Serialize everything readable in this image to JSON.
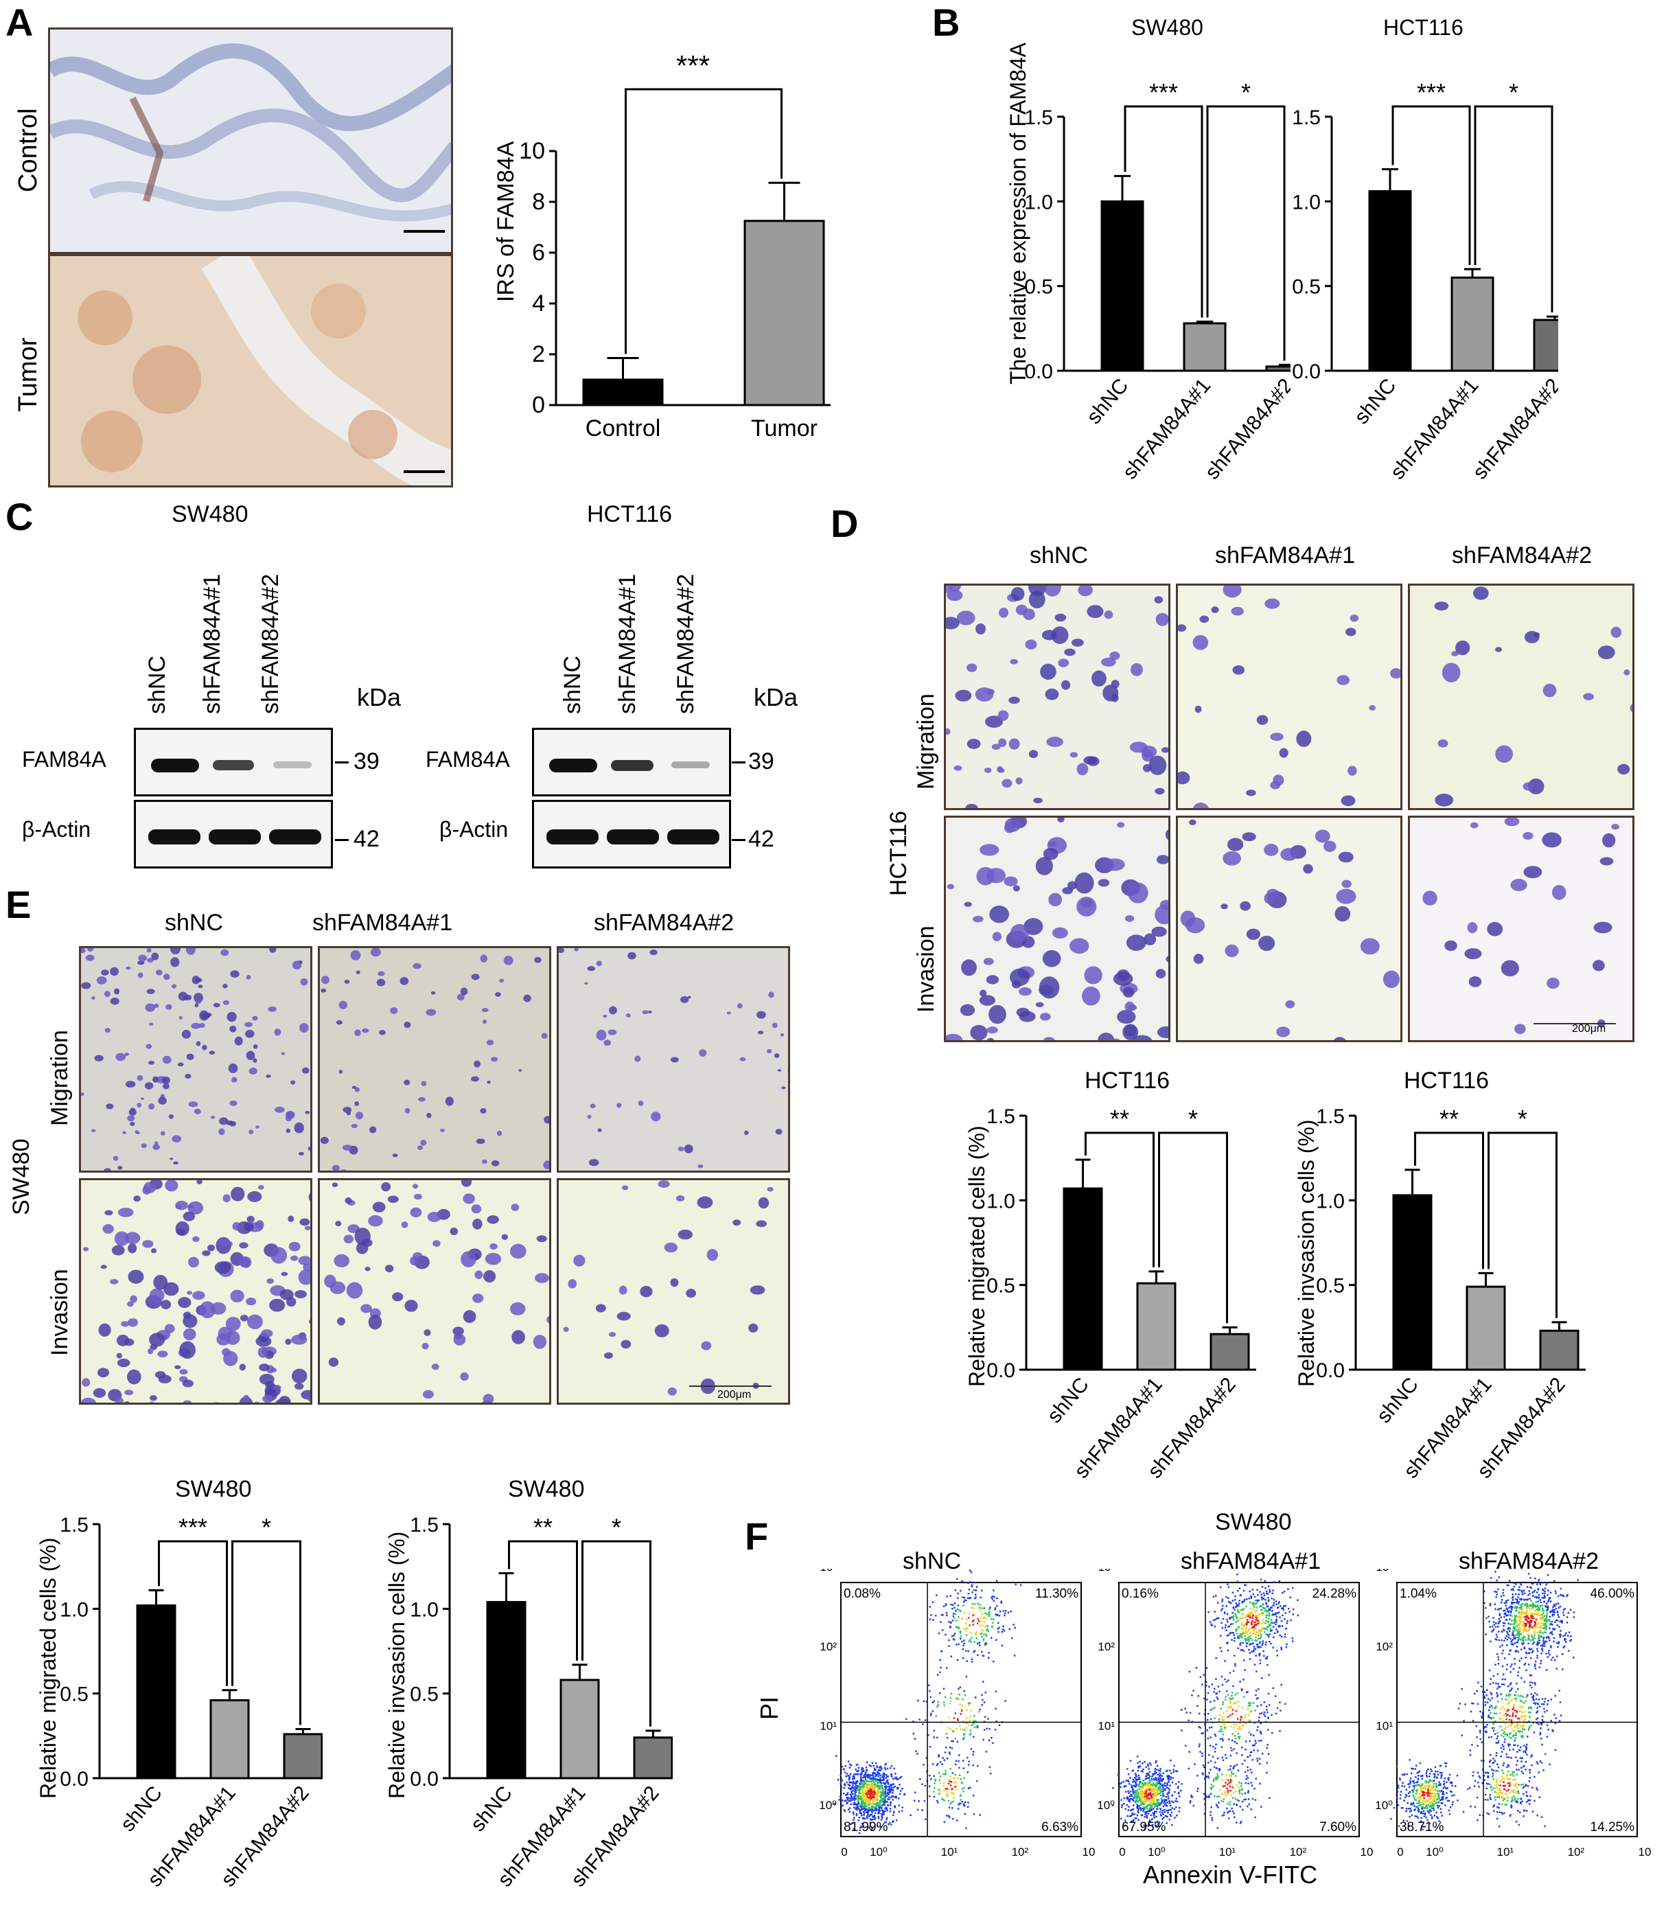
{
  "panel_letters": {
    "a": "A",
    "b": "B",
    "c": "C",
    "d": "D",
    "e": "E",
    "f": "F"
  },
  "panel_a": {
    "row_labels": [
      "Control",
      "Tumor"
    ],
    "chart": {
      "ylabel": "IRS of FAM84A",
      "significance": "***",
      "categories": [
        "Control",
        "Tumor"
      ],
      "values": [
        1.0,
        7.25
      ],
      "errors": [
        0.85,
        1.5
      ],
      "ylim": [
        0,
        10
      ],
      "yticks": [
        "0",
        "2",
        "4",
        "6",
        "8",
        "10"
      ]
    }
  },
  "panel_b": {
    "ylabel": "The relative expression of FAM84A",
    "charts": [
      {
        "title": "SW480",
        "categories": [
          "shNC",
          "shFAM84A#1",
          "shFAM84A#2"
        ],
        "values": [
          1.0,
          0.28,
          0.025
        ],
        "errors": [
          0.15,
          0.01,
          0.01
        ],
        "sig": [
          "***",
          "*"
        ],
        "ylim": [
          0,
          1.5
        ],
        "yticks": [
          "0.0",
          "0.5",
          "1.0",
          "1.5"
        ]
      },
      {
        "title": "HCT116",
        "categories": [
          "shNC",
          "shFAM84A#1",
          "shFAM84A#2"
        ],
        "values": [
          1.06,
          0.55,
          0.3
        ],
        "errors": [
          0.13,
          0.05,
          0.02
        ],
        "sig": [
          "***",
          "*"
        ],
        "ylim": [
          0,
          1.5
        ],
        "yticks": [
          "0.0",
          "0.5",
          "1.0",
          "1.5"
        ]
      }
    ]
  },
  "panel_c": {
    "blots": [
      {
        "title": "SW480",
        "lanes": [
          "shNC",
          "shFAM84A#1",
          "shFAM84A#2"
        ],
        "kda_label": "kDa",
        "rows": [
          {
            "name": "FAM84A",
            "kda": "39"
          },
          {
            "name": "β-Actin",
            "kda": "42"
          }
        ]
      },
      {
        "title": "HCT116",
        "lanes": [
          "shNC",
          "shFAM84A#1",
          "shFAM84A#2"
        ],
        "kda_label": "kDa",
        "rows": [
          {
            "name": "FAM84A",
            "kda": "39"
          },
          {
            "name": "β-Actin",
            "kda": "42"
          }
        ]
      }
    ]
  },
  "panel_d": {
    "cell_line": "HCT116",
    "col_labels": [
      "shNC",
      "shFAM84A#1",
      "shFAM84A#2"
    ],
    "row_labels": [
      "Migration",
      "Invasion"
    ],
    "scale_bar": "200μm",
    "charts": [
      {
        "title": "HCT116",
        "ylabel": "Relative migrated cells (%)",
        "categories": [
          "shNC",
          "shFAM84A#1",
          "shFAM84A#2"
        ],
        "values": [
          1.07,
          0.51,
          0.21
        ],
        "errors": [
          0.17,
          0.07,
          0.04
        ],
        "sig": [
          "**",
          "*"
        ],
        "ylim": [
          0,
          1.5
        ],
        "yticks": [
          "0.0",
          "0.5",
          "1.0",
          "1.5"
        ]
      },
      {
        "title": "HCT116",
        "ylabel": "Relative invsasion cells (%)",
        "categories": [
          "shNC",
          "shFAM84A#1",
          "shFAM84A#2"
        ],
        "values": [
          1.03,
          0.49,
          0.23
        ],
        "errors": [
          0.15,
          0.08,
          0.05
        ],
        "sig": [
          "**",
          "*"
        ],
        "ylim": [
          0,
          1.5
        ],
        "yticks": [
          "0.0",
          "0.5",
          "1.0",
          "1.5"
        ]
      }
    ]
  },
  "panel_e": {
    "cell_line": "SW480",
    "col_labels": [
      "shNC",
      "shFAM84A#1",
      "shFAM84A#2"
    ],
    "row_labels": [
      "Migration",
      "Invasion"
    ],
    "scale_bar": "200μm",
    "charts": [
      {
        "title": "SW480",
        "ylabel": "Relative migrated cells (%)",
        "categories": [
          "shNC",
          "shFAM84A#1",
          "shFAM84A#2"
        ],
        "values": [
          1.02,
          0.46,
          0.26
        ],
        "errors": [
          0.09,
          0.06,
          0.03
        ],
        "sig": [
          "***",
          "*"
        ],
        "ylim": [
          0,
          1.5
        ],
        "yticks": [
          "0.0",
          "0.5",
          "1.0",
          "1.5"
        ]
      },
      {
        "title": "SW480",
        "ylabel": "Relative invsasion cells (%)",
        "categories": [
          "shNC",
          "shFAM84A#1",
          "shFAM84A#2"
        ],
        "values": [
          1.04,
          0.58,
          0.24
        ],
        "errors": [
          0.17,
          0.09,
          0.04
        ],
        "sig": [
          "**",
          "*"
        ],
        "ylim": [
          0,
          1.5
        ],
        "yticks": [
          "0.0",
          "0.5",
          "1.0",
          "1.5"
        ]
      }
    ]
  },
  "panel_f": {
    "title": "SW480",
    "xlabel": "Annexin V-FITC",
    "ylabel": "PI",
    "ticks": [
      "10⁰",
      "10¹",
      "10²",
      "10³"
    ],
    "plots": [
      {
        "title": "shNC",
        "q": [
          "0.08%",
          "11.30%",
          "81.99%",
          "6.63%"
        ]
      },
      {
        "title": "shFAM84A#1",
        "q": [
          "0.16%",
          "24.28%",
          "67.95%",
          "7.60%"
        ]
      },
      {
        "title": "shFAM84A#2",
        "q": [
          "1.04%",
          "46.00%",
          "38.71%",
          "14.25%"
        ]
      }
    ]
  },
  "chart_data": [
    {
      "type": "bar",
      "panel": "A",
      "categories": [
        "Control",
        "Tumor"
      ],
      "values": [
        1.0,
        7.25
      ],
      "ylabel": "IRS of FAM84A",
      "ylim": [
        0,
        10
      ]
    },
    {
      "type": "bar",
      "panel": "B",
      "title": "SW480",
      "categories": [
        "shNC",
        "shFAM84A#1",
        "shFAM84A#2"
      ],
      "values": [
        1.0,
        0.28,
        0.025
      ],
      "ylabel": "The relative expression of FAM84A",
      "ylim": [
        0,
        1.5
      ]
    },
    {
      "type": "bar",
      "panel": "B",
      "title": "HCT116",
      "categories": [
        "shNC",
        "shFAM84A#1",
        "shFAM84A#2"
      ],
      "values": [
        1.06,
        0.55,
        0.3
      ],
      "ylim": [
        0,
        1.5
      ]
    },
    {
      "type": "bar",
      "panel": "D",
      "title": "HCT116",
      "categories": [
        "shNC",
        "shFAM84A#1",
        "shFAM84A#2"
      ],
      "values": [
        1.07,
        0.51,
        0.21
      ],
      "ylabel": "Relative migrated cells (%)",
      "ylim": [
        0,
        1.5
      ]
    },
    {
      "type": "bar",
      "panel": "D",
      "title": "HCT116",
      "categories": [
        "shNC",
        "shFAM84A#1",
        "shFAM84A#2"
      ],
      "values": [
        1.03,
        0.49,
        0.23
      ],
      "ylabel": "Relative invsasion cells (%)",
      "ylim": [
        0,
        1.5
      ]
    },
    {
      "type": "bar",
      "panel": "E",
      "title": "SW480",
      "categories": [
        "shNC",
        "shFAM84A#1",
        "shFAM84A#2"
      ],
      "values": [
        1.02,
        0.46,
        0.26
      ],
      "ylabel": "Relative migrated cells (%)",
      "ylim": [
        0,
        1.5
      ]
    },
    {
      "type": "bar",
      "panel": "E",
      "title": "SW480",
      "categories": [
        "shNC",
        "shFAM84A#1",
        "shFAM84A#2"
      ],
      "values": [
        1.04,
        0.58,
        0.24
      ],
      "ylabel": "Relative invsasion cells (%)",
      "ylim": [
        0,
        1.5
      ]
    }
  ]
}
